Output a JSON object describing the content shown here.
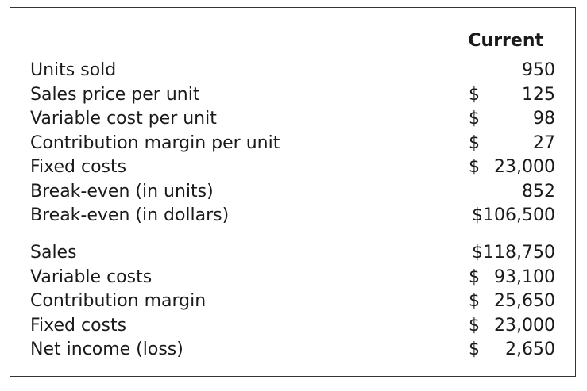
{
  "header": {
    "column": "Current"
  },
  "section1": [
    {
      "label": "Units sold",
      "dollar": "",
      "amount": "950"
    },
    {
      "label": "Sales price per unit",
      "dollar": "$",
      "amount": "125"
    },
    {
      "label": "Variable cost per unit",
      "dollar": "$",
      "amount": "98"
    },
    {
      "label": "Contribution margin per unit",
      "dollar": "$",
      "amount": "27"
    },
    {
      "label": "Fixed costs",
      "dollar": "$",
      "amount": "23,000"
    },
    {
      "label": "Break-even (in units)",
      "dollar": "",
      "amount": "852"
    },
    {
      "label": "Break-even (in dollars)",
      "dollar": "",
      "amount": "$106,500"
    }
  ],
  "section2": [
    {
      "label": "Sales",
      "dollar": "",
      "amount": "$118,750"
    },
    {
      "label": "Variable costs",
      "dollar": "$",
      "amount": "93,100"
    },
    {
      "label": "Contribution margin",
      "dollar": "$",
      "amount": "25,650"
    },
    {
      "label": "Fixed costs",
      "dollar": "$",
      "amount": "23,000"
    },
    {
      "label": "Net income (loss)",
      "dollar": "$",
      "amount": "2,650"
    }
  ]
}
